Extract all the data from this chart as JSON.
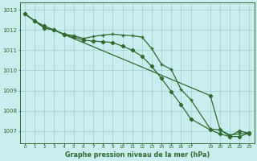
{
  "line1_x": [
    0,
    1,
    2,
    3,
    4,
    5,
    6,
    7,
    8,
    9,
    10,
    11,
    12,
    13,
    14,
    15,
    16,
    17,
    19,
    20,
    21,
    22,
    23
  ],
  "line1_y": [
    1012.8,
    1012.45,
    1012.1,
    1012.0,
    1011.8,
    1011.72,
    1011.58,
    1011.68,
    1011.75,
    1011.8,
    1011.75,
    1011.72,
    1011.65,
    1011.08,
    1010.3,
    1010.05,
    1009.05,
    1008.55,
    1007.1,
    1007.05,
    1006.8,
    1006.85,
    1006.9
  ],
  "line2_x": [
    0,
    1,
    2,
    3,
    4,
    5,
    6,
    7,
    8,
    9,
    10,
    11,
    12,
    13,
    14,
    15,
    16,
    17,
    19,
    20,
    21,
    22,
    23
  ],
  "line2_y": [
    1012.8,
    1012.45,
    1012.1,
    1012.0,
    1011.78,
    1011.65,
    1011.5,
    1011.45,
    1011.42,
    1011.38,
    1011.2,
    1011.0,
    1010.7,
    1010.2,
    1009.6,
    1008.95,
    1008.3,
    1007.6,
    1007.05,
    1006.85,
    1006.72,
    1006.72,
    1006.9
  ],
  "line3_x": [
    0,
    1,
    2,
    3,
    4,
    19,
    20,
    21,
    22,
    23
  ],
  "line3_y": [
    1012.8,
    1012.45,
    1012.2,
    1012.0,
    1011.78,
    1008.75,
    1007.05,
    1006.75,
    1007.0,
    1006.88
  ],
  "color": "#2d6a2d",
  "background_color": "#c8eef0",
  "grid_color": "#9ecece",
  "xlabel": "Graphe pression niveau de la mer (hPa)",
  "xlim": [
    -0.5,
    23.5
  ],
  "ylim": [
    1006.4,
    1013.35
  ],
  "yticks": [
    1007,
    1008,
    1009,
    1010,
    1011,
    1012,
    1013
  ],
  "xticks": [
    0,
    1,
    2,
    3,
    4,
    5,
    6,
    7,
    8,
    9,
    10,
    11,
    12,
    13,
    14,
    15,
    16,
    17,
    19,
    20,
    21,
    22,
    23
  ]
}
